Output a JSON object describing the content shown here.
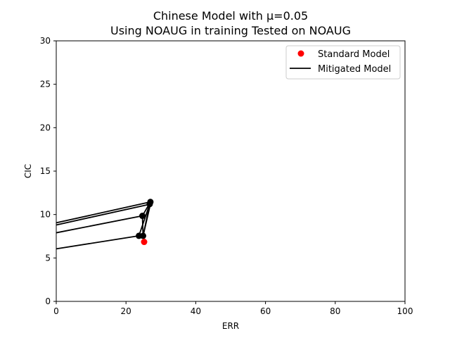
{
  "chart_data": {
    "type": "scatter",
    "title_line1": "Chinese Model with μ=0.05",
    "title_line2": "Using NOAUG in training Tested on NOAUG",
    "xlabel": "ERR",
    "ylabel": "CIC",
    "xlim": [
      0,
      100
    ],
    "ylim": [
      0,
      30
    ],
    "xticks": [
      0,
      20,
      40,
      60,
      80,
      100
    ],
    "yticks": [
      0,
      5,
      10,
      15,
      20,
      25,
      30
    ],
    "grid": false,
    "legend_position": "top-right",
    "legend": [
      {
        "label": "Standard Model",
        "kind": "marker",
        "color": "#ff0000"
      },
      {
        "label": "Mitigated Model",
        "kind": "line",
        "color": "#000000"
      }
    ],
    "series": [
      {
        "name": "Standard Model",
        "kind": "scatter",
        "color": "#ff0000",
        "points": [
          [
            25.2,
            6.85
          ]
        ]
      },
      {
        "name": "Mitigated Model",
        "kind": "line",
        "color": "#000000",
        "lines": [
          [
            [
              0,
              6.05
            ],
            [
              23.7,
              7.55
            ],
            [
              24.9,
              7.55
            ],
            [
              26.8,
              11.2
            ]
          ],
          [
            [
              0,
              7.9
            ],
            [
              24.7,
              9.85
            ],
            [
              27.0,
              11.45
            ],
            [
              23.7,
              7.55
            ]
          ],
          [
            [
              0,
              8.8
            ],
            [
              27.0,
              11.2
            ],
            [
              24.9,
              7.55
            ],
            [
              24.7,
              9.85
            ]
          ],
          [
            [
              0,
              9.05
            ],
            [
              27.0,
              11.45
            ]
          ]
        ],
        "markers": [
          [
            23.7,
            7.55
          ],
          [
            24.9,
            7.55
          ],
          [
            24.7,
            9.85
          ],
          [
            26.8,
            11.2
          ],
          [
            27.0,
            11.45
          ]
        ]
      }
    ]
  }
}
